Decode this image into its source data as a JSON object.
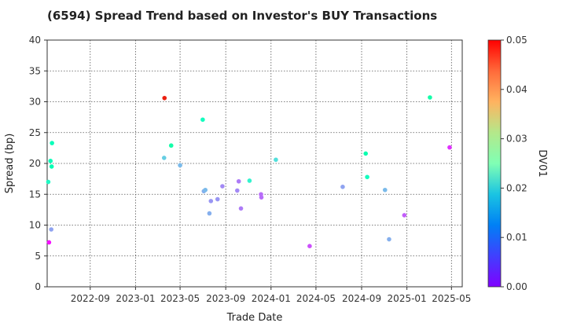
{
  "chart_data": {
    "type": "scatter",
    "title": "(6594)   Spread Trend based on Investor's BUY Transactions",
    "xlabel": "Trade Date",
    "ylabel": "Spread (bp)",
    "ylim": [
      0,
      40
    ],
    "yticks": [
      0,
      5,
      10,
      15,
      20,
      25,
      30,
      35,
      40
    ],
    "xlim": [
      "2022-05-08",
      "2025-05-30"
    ],
    "xticks": [
      "2022-09",
      "2023-01",
      "2023-05",
      "2023-09",
      "2024-01",
      "2024-05",
      "2024-09",
      "2025-01",
      "2025-05"
    ],
    "grid": true,
    "colorbar": {
      "label": "DV01",
      "range": [
        0.0,
        0.05
      ],
      "ticks": [
        "0.00",
        "0.01",
        "0.02",
        "0.03",
        "0.04",
        "0.05"
      ],
      "colormap": "rainbow"
    },
    "points": [
      {
        "x": "2022-05-11",
        "y": 17.0,
        "c": 0.022
      },
      {
        "x": "2022-05-13",
        "y": 7.2,
        "c": 0.001
      },
      {
        "x": "2022-05-17",
        "y": 20.4,
        "c": 0.024
      },
      {
        "x": "2022-05-19",
        "y": 9.3,
        "c": 0.011
      },
      {
        "x": "2022-05-20",
        "y": 19.5,
        "c": 0.025
      },
      {
        "x": "2022-05-21",
        "y": 23.3,
        "c": 0.024
      },
      {
        "x": "2023-03-20",
        "y": 30.6,
        "c": 0.048
      },
      {
        "x": "2023-03-19",
        "y": 20.9,
        "c": 0.015
      },
      {
        "x": "2023-04-07",
        "y": 22.9,
        "c": 0.027
      },
      {
        "x": "2023-05-01",
        "y": 19.7,
        "c": 0.013
      },
      {
        "x": "2023-07-01",
        "y": 27.1,
        "c": 0.023
      },
      {
        "x": "2023-07-04",
        "y": 15.5,
        "c": 0.012
      },
      {
        "x": "2023-07-08",
        "y": 15.7,
        "c": 0.013
      },
      {
        "x": "2023-07-19",
        "y": 11.9,
        "c": 0.012
      },
      {
        "x": "2023-07-23",
        "y": 13.9,
        "c": 0.01
      },
      {
        "x": "2023-08-10",
        "y": 14.2,
        "c": 0.01
      },
      {
        "x": "2023-08-23",
        "y": 16.3,
        "c": 0.009
      },
      {
        "x": "2023-10-02",
        "y": 15.6,
        "c": 0.009
      },
      {
        "x": "2023-10-06",
        "y": 17.1,
        "c": 0.008
      },
      {
        "x": "2023-10-12",
        "y": 12.7,
        "c": 0.008
      },
      {
        "x": "2023-11-04",
        "y": 17.2,
        "c": 0.02
      },
      {
        "x": "2023-12-05",
        "y": 15.0,
        "c": 0.007
      },
      {
        "x": "2023-12-06",
        "y": 14.5,
        "c": 0.007
      },
      {
        "x": "2024-01-14",
        "y": 20.6,
        "c": 0.017
      },
      {
        "x": "2024-04-14",
        "y": 6.6,
        "c": 0.005
      },
      {
        "x": "2024-07-12",
        "y": 16.2,
        "c": 0.011
      },
      {
        "x": "2024-09-12",
        "y": 21.6,
        "c": 0.026
      },
      {
        "x": "2024-09-16",
        "y": 17.8,
        "c": 0.023
      },
      {
        "x": "2024-11-03",
        "y": 15.7,
        "c": 0.013
      },
      {
        "x": "2024-11-14",
        "y": 7.7,
        "c": 0.012
      },
      {
        "x": "2024-12-25",
        "y": 11.6,
        "c": 0.006
      },
      {
        "x": "2025-03-04",
        "y": 30.7,
        "c": 0.027
      },
      {
        "x": "2025-04-26",
        "y": 22.6,
        "c": 0.003
      }
    ]
  }
}
